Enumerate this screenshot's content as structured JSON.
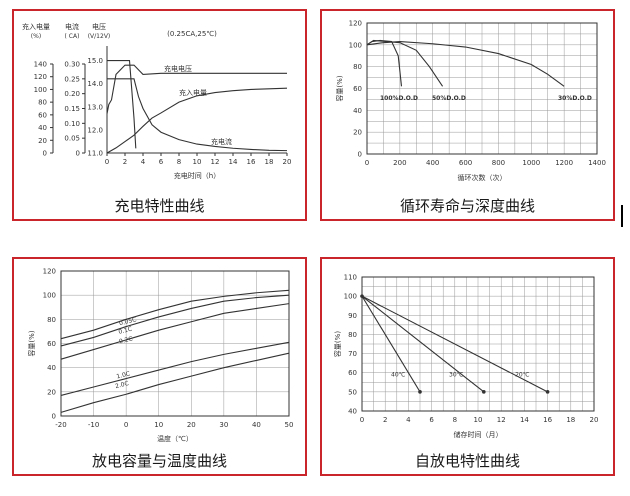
{
  "chart_data": [
    {
      "type": "line",
      "caption": "充电特性曲线",
      "title": "(0.25CA,25℃)",
      "xlabel": "充电时间（h）",
      "x_ticks": [
        0,
        2,
        4,
        6,
        8,
        10,
        12,
        14,
        16,
        18,
        20
      ],
      "axes": [
        {
          "header": [
            "充入电量",
            "(%)"
          ],
          "ticks": [
            0,
            20,
            40,
            60,
            80,
            100,
            120,
            140
          ],
          "ylim": [
            0,
            140
          ]
        },
        {
          "header": [
            "电流",
            "( CA)"
          ],
          "ticks": [
            "0",
            "0.05",
            "0.10",
            "0.15",
            "0.20",
            "0.25",
            "0.30"
          ],
          "ylim": [
            0,
            0.3
          ]
        },
        {
          "header": [
            "电压",
            "(V/12V)"
          ],
          "ticks": [
            "11.0",
            "12.0",
            "13.0",
            "14.0",
            "15.0"
          ],
          "ylim": [
            11,
            15.5
          ]
        }
      ],
      "series": [
        {
          "name": "充电电压",
          "axis": "voltage",
          "x": [
            0,
            0.2,
            0.5,
            1,
            1.5,
            2,
            3,
            4,
            6,
            8,
            10,
            12,
            14,
            16,
            18,
            20
          ],
          "y": [
            12.7,
            13.1,
            13.3,
            14.4,
            14.6,
            14.8,
            14.8,
            14.4,
            14.45,
            14.45,
            14.45,
            14.45,
            14.45,
            14.45,
            14.45,
            14.45
          ]
        },
        {
          "name": "充入电量",
          "axis": "capacity",
          "x": [
            0,
            1,
            2,
            3,
            4,
            5,
            6,
            8,
            10,
            12,
            14,
            16,
            18,
            20
          ],
          "y": [
            0,
            8,
            18,
            28,
            42,
            55,
            63,
            80,
            90,
            95,
            98,
            100,
            101,
            102
          ]
        },
        {
          "name": "充电流",
          "axis": "current",
          "x": [
            0,
            0.5,
            1,
            2,
            2.5,
            3,
            3.5,
            4,
            5,
            6,
            8,
            10,
            12,
            14,
            16,
            18,
            20
          ],
          "y": [
            0.25,
            0.25,
            0.25,
            0.25,
            0.25,
            0.25,
            0.19,
            0.15,
            0.095,
            0.07,
            0.045,
            0.03,
            0.022,
            0.016,
            0.012,
            0.009,
            0.008
          ]
        },
        {
          "name": "",
          "axis": "voltage",
          "x": [
            0,
            2.5,
            2.7,
            3,
            3.2
          ],
          "y": [
            15.0,
            15.0,
            14.0,
            12.5,
            11.2
          ]
        }
      ]
    },
    {
      "type": "line",
      "caption": "循环寿命与深度曲线",
      "xlabel": "循环次数（次）",
      "ylabel": "容量(%)",
      "x_ticks": [
        0,
        200,
        400,
        600,
        800,
        1000,
        1200,
        1400
      ],
      "y_ticks": [
        0,
        20,
        40,
        60,
        80,
        100,
        120
      ],
      "xlim": [
        0,
        1400
      ],
      "ylim": [
        0,
        120
      ],
      "series": [
        {
          "name": "100%D.O.D",
          "x": [
            0,
            30,
            80,
            150,
            190,
            210
          ],
          "y": [
            100,
            103,
            104,
            103,
            90,
            62
          ]
        },
        {
          "name": "50%D.O.D",
          "x": [
            0,
            40,
            120,
            200,
            300,
            380,
            460
          ],
          "y": [
            100,
            104,
            103,
            102,
            95,
            80,
            62
          ]
        },
        {
          "name": "30%D.O.D",
          "x": [
            0,
            100,
            200,
            400,
            600,
            800,
            1000,
            1100,
            1200
          ],
          "y": [
            100,
            102,
            103,
            101,
            98,
            92,
            82,
            73,
            62
          ]
        }
      ]
    },
    {
      "type": "line",
      "caption": "放电容量与温度曲线",
      "xlabel": "温度（℃）",
      "ylabel": "容量(%)",
      "x_ticks": [
        -20,
        -10,
        0,
        10,
        20,
        30,
        40,
        50
      ],
      "y_ticks": [
        0,
        20,
        40,
        60,
        80,
        100,
        120
      ],
      "xlim": [
        -20,
        50
      ],
      "ylim": [
        0,
        120
      ],
      "series": [
        {
          "name": "0.05C",
          "x": [
            -20,
            -10,
            0,
            10,
            20,
            30,
            40,
            50
          ],
          "y": [
            64,
            71,
            80,
            88,
            95,
            99,
            102,
            104
          ]
        },
        {
          "name": "0.1C",
          "x": [
            -20,
            -10,
            0,
            10,
            20,
            30,
            40,
            50
          ],
          "y": [
            58,
            65,
            74,
            82,
            89,
            95,
            98,
            100
          ]
        },
        {
          "name": "0.2C",
          "x": [
            -20,
            -10,
            0,
            10,
            20,
            30,
            40,
            50
          ],
          "y": [
            47,
            55,
            63,
            71,
            78,
            85,
            89,
            93
          ]
        },
        {
          "name": "1.0C",
          "x": [
            -20,
            -10,
            0,
            10,
            20,
            30,
            40,
            50
          ],
          "y": [
            17,
            24,
            31,
            38,
            45,
            51,
            56,
            61
          ]
        },
        {
          "name": "2.0C",
          "x": [
            -20,
            -10,
            0,
            10,
            20,
            30,
            40,
            50
          ],
          "y": [
            3,
            11,
            18,
            26,
            33,
            40,
            46,
            52
          ]
        }
      ]
    },
    {
      "type": "line",
      "caption": "自放电特性曲线",
      "xlabel": "储存时间（月）",
      "ylabel": "容量(%)",
      "x_ticks": [
        0,
        2,
        4,
        6,
        8,
        10,
        12,
        14,
        16,
        18,
        20
      ],
      "y_ticks": [
        40,
        50,
        60,
        70,
        80,
        90,
        100,
        110
      ],
      "xlim": [
        0,
        20
      ],
      "ylim": [
        40,
        110
      ],
      "series": [
        {
          "name": "40℃",
          "x": [
            0,
            5
          ],
          "y": [
            100,
            50
          ]
        },
        {
          "name": "30℃",
          "x": [
            0,
            10.5
          ],
          "y": [
            100,
            50
          ]
        },
        {
          "name": "20℃",
          "x": [
            0,
            16
          ],
          "y": [
            100,
            50
          ]
        }
      ]
    }
  ]
}
